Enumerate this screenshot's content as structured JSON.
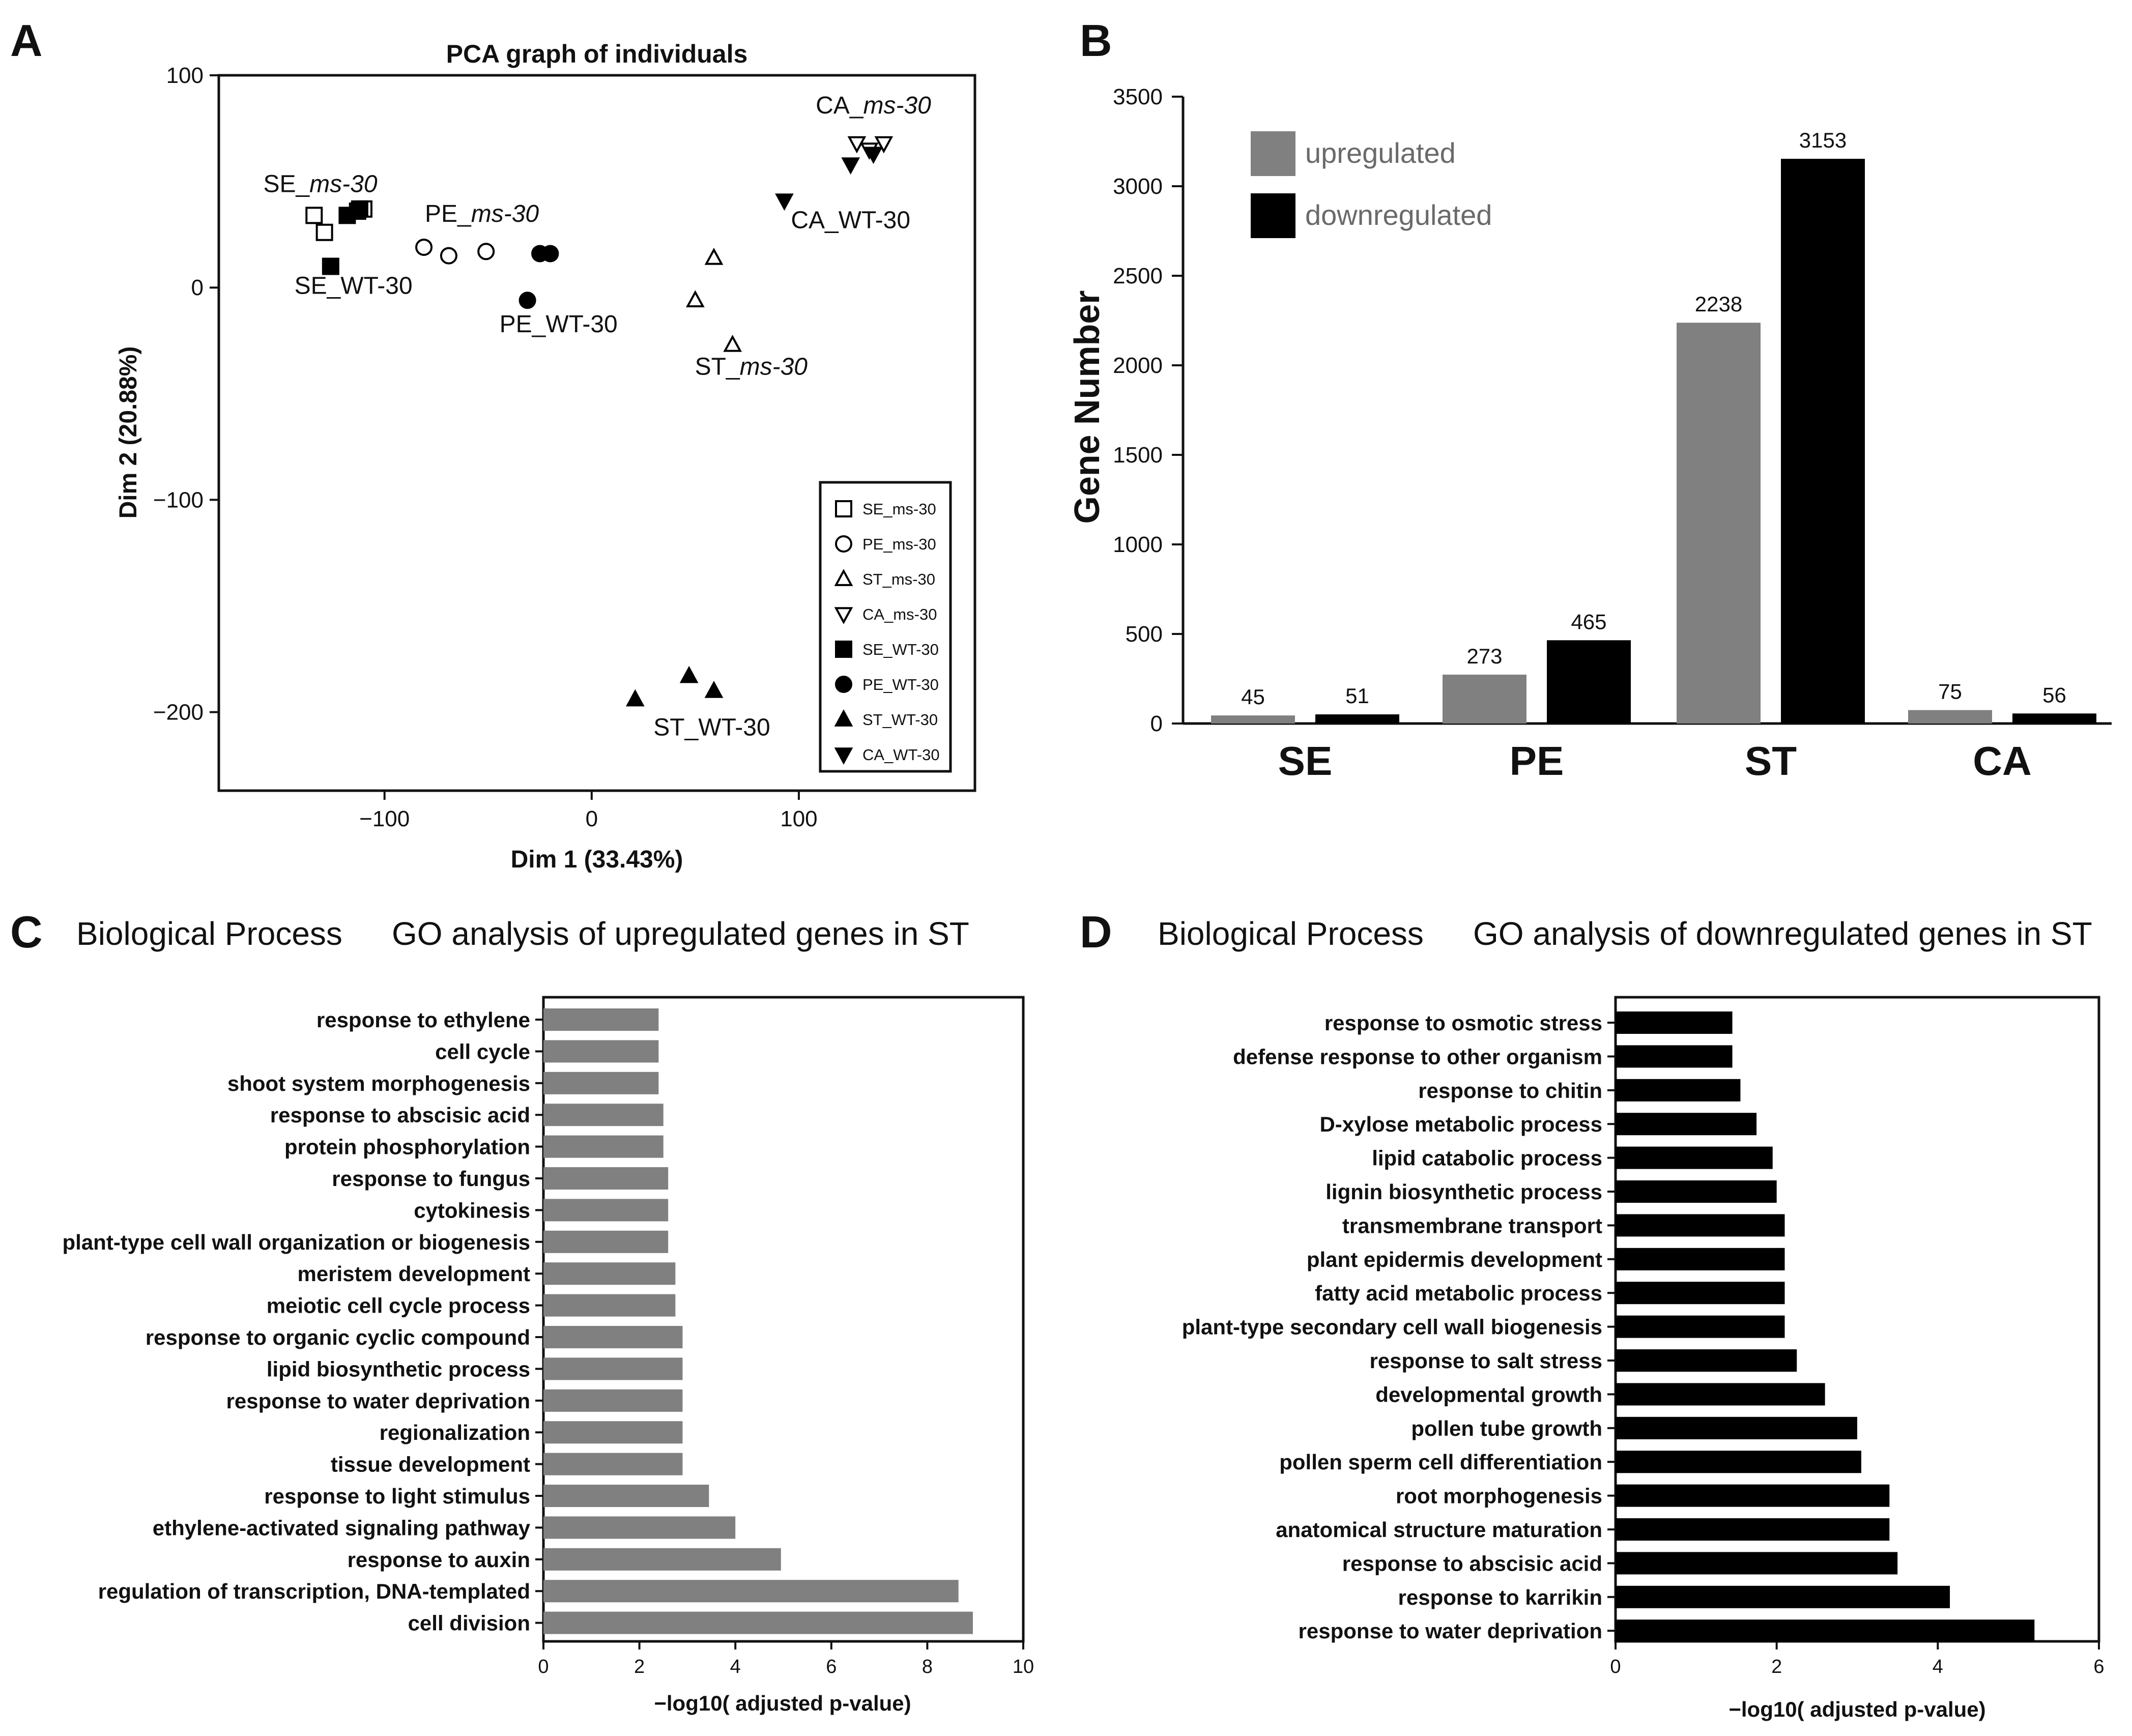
{
  "panels": {
    "A": {
      "letter": "A",
      "chart_data": {
        "type": "scatter",
        "title": "PCA graph of individuals",
        "xlabel": "Dim 1 (33.43%)",
        "ylabel": "Dim 2 (20.88%)",
        "xlim": [
          -180,
          185
        ],
        "ylim": [
          -237,
          100
        ],
        "x_ticks": [
          -100,
          0,
          100
        ],
        "x_tick_labels": [
          "−100",
          "0",
          "100"
        ],
        "y_ticks": [
          100,
          0,
          -100,
          -200
        ],
        "y_tick_labels": [
          "100",
          "0",
          "−100",
          "−200"
        ],
        "legend_position": "bottom-right",
        "series": [
          {
            "name": "SE_ms-30",
            "marker": "square",
            "filled": false,
            "points": [
              [
                -134,
                34
              ],
              [
                -129,
                26
              ],
              [
                -113,
                36
              ],
              [
                -110,
                37
              ]
            ]
          },
          {
            "name": "PE_ms-30",
            "marker": "circle",
            "filled": false,
            "points": [
              [
                -81,
                19
              ],
              [
                -69,
                15
              ],
              [
                -51,
                17
              ]
            ]
          },
          {
            "name": "ST_ms-30",
            "marker": "triangle-up",
            "filled": false,
            "points": [
              [
                59,
                14
              ],
              [
                50,
                -6
              ],
              [
                68,
                -27
              ]
            ]
          },
          {
            "name": "CA_ms-30",
            "marker": "triangle-down",
            "filled": false,
            "points": [
              [
                128,
                68
              ],
              [
                134,
                65
              ],
              [
                141,
                68
              ]
            ]
          },
          {
            "name": "SE_WT-30",
            "marker": "square",
            "filled": true,
            "points": [
              [
                -126,
                10
              ],
              [
                -118,
                34
              ],
              [
                -112,
                37
              ]
            ]
          },
          {
            "name": "PE_WT-30",
            "marker": "circle",
            "filled": true,
            "points": [
              [
                -31,
                -6
              ],
              [
                -25,
                16
              ],
              [
                -20,
                16
              ]
            ]
          },
          {
            "name": "ST_WT-30",
            "marker": "triangle-up",
            "filled": true,
            "points": [
              [
                21,
                -194
              ],
              [
                47,
                -183
              ],
              [
                59,
                -190
              ]
            ]
          },
          {
            "name": "CA_WT-30",
            "marker": "triangle-down",
            "filled": true,
            "points": [
              [
                93,
                41
              ],
              [
                125,
                58
              ],
              [
                136,
                63
              ]
            ]
          }
        ],
        "annotations": [
          {
            "prefix": "SE_",
            "suffix": "ms-30",
            "italic_suffix": true,
            "x": -131,
            "y": 45
          },
          {
            "prefix": "SE_WT-30",
            "suffix": "",
            "italic_suffix": false,
            "x": -115,
            "y": -3
          },
          {
            "prefix": "PE_",
            "suffix": "ms-30",
            "italic_suffix": true,
            "x": -53,
            "y": 31
          },
          {
            "prefix": "PE_WT-30",
            "suffix": "",
            "italic_suffix": false,
            "x": -16,
            "y": -21
          },
          {
            "prefix": "ST_",
            "suffix": "ms-30",
            "italic_suffix": true,
            "x": 77,
            "y": -41
          },
          {
            "prefix": "CA_",
            "suffix": "ms-30",
            "italic_suffix": true,
            "x": 136,
            "y": 82
          },
          {
            "prefix": "CA_WT-30",
            "suffix": "",
            "italic_suffix": false,
            "x": 125,
            "y": 28
          },
          {
            "prefix": "ST_WT-30",
            "suffix": "",
            "italic_suffix": false,
            "x": 58,
            "y": -211
          }
        ]
      }
    },
    "B": {
      "letter": "B",
      "chart_data": {
        "type": "bar",
        "title": "",
        "xlabel": "",
        "ylabel": "Gene Number",
        "ylim": [
          0,
          3500
        ],
        "y_ticks": [
          0,
          500,
          1000,
          1500,
          2000,
          2500,
          3000,
          3500
        ],
        "categories": [
          "SE",
          "PE",
          "ST",
          "CA"
        ],
        "legend_position": "top-left",
        "series": [
          {
            "name": "upregulated",
            "color": "#808080",
            "values": [
              45,
              273,
              2238,
              75
            ]
          },
          {
            "name": "downregulated",
            "color": "#000000",
            "values": [
              51,
              465,
              3153,
              56
            ]
          }
        ]
      }
    },
    "C": {
      "letter": "C",
      "header_left": "Biological Process",
      "header_right": "GO analysis of upregulated genes in ST",
      "chart_data": {
        "type": "bar",
        "orientation": "horizontal",
        "title": "GO analysis of upregulated genes in ST",
        "xlabel": "−log10( adjusted p-value)",
        "xlim": [
          0,
          10
        ],
        "x_ticks": [
          0,
          2,
          4,
          6,
          8,
          10
        ],
        "bar_color": "#808080",
        "categories": [
          "response to ethylene",
          "cell cycle",
          "shoot system morphogenesis",
          "response to abscisic acid",
          "protein phosphorylation",
          "response to fungus",
          "cytokinesis",
          "plant-type cell wall organization or biogenesis",
          "meristem development",
          "meiotic cell cycle process",
          "response to organic cyclic compound",
          "lipid biosynthetic process",
          "response to water deprivation",
          "regionalization",
          "tissue development",
          "response to light stimulus",
          "ethylene-activated signaling pathway",
          "response to auxin",
          "regulation of transcription, DNA-templated",
          "cell division"
        ],
        "values": [
          2.4,
          2.4,
          2.4,
          2.5,
          2.5,
          2.6,
          2.6,
          2.6,
          2.75,
          2.75,
          2.9,
          2.9,
          2.9,
          2.9,
          2.9,
          3.45,
          4.0,
          4.95,
          8.65,
          8.95
        ]
      }
    },
    "D": {
      "letter": "D",
      "header_left": "Biological Process",
      "header_right": "GO analysis of downregulated genes in ST",
      "chart_data": {
        "type": "bar",
        "orientation": "horizontal",
        "title": "GO analysis of downregulated genes in ST",
        "xlabel": "−log10( adjusted p-value)",
        "xlim": [
          0,
          6
        ],
        "x_ticks": [
          0,
          2,
          4,
          6
        ],
        "bar_color": "#000000",
        "categories": [
          "response to osmotic stress",
          "defense response to other organism",
          "response to chitin",
          "D-xylose metabolic process",
          "lipid catabolic process",
          "lignin biosynthetic process",
          "transmembrane transport",
          "plant epidermis development",
          "fatty acid metabolic process",
          "plant-type secondary cell wall biogenesis",
          "response to salt stress",
          "developmental growth",
          "pollen tube growth",
          "pollen sperm cell differentiation",
          "root morphogenesis",
          "anatomical structure maturation",
          "response to abscisic acid",
          "response to karrikin",
          "response to water deprivation"
        ],
        "values": [
          1.45,
          1.45,
          1.55,
          1.75,
          1.95,
          2.0,
          2.1,
          2.1,
          2.1,
          2.1,
          2.25,
          2.6,
          3.0,
          3.05,
          3.4,
          3.4,
          3.5,
          4.15,
          5.2
        ]
      }
    }
  }
}
